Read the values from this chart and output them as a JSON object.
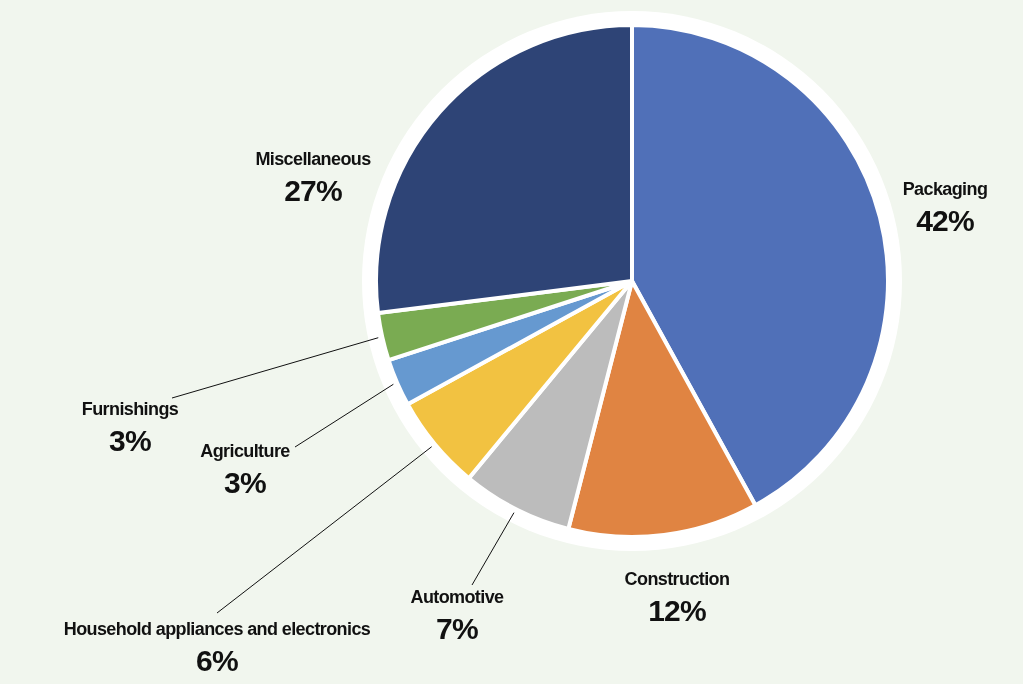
{
  "chart_data": {
    "type": "pie",
    "categories": [
      "Packaging",
      "Construction",
      "Automotive",
      "Household appliances and electronics",
      "Agriculture",
      "Furnishings",
      "Miscellaneous"
    ],
    "values": [
      42,
      12,
      7,
      6,
      3,
      3,
      27
    ],
    "value_labels": [
      "42%",
      "12%",
      "7%",
      "6%",
      "3%",
      "3%",
      "27%"
    ],
    "colors": [
      "#5070b8",
      "#e08442",
      "#bcbcbc",
      "#f2c241",
      "#6699d0",
      "#7aab52",
      "#2e4476"
    ]
  }
}
